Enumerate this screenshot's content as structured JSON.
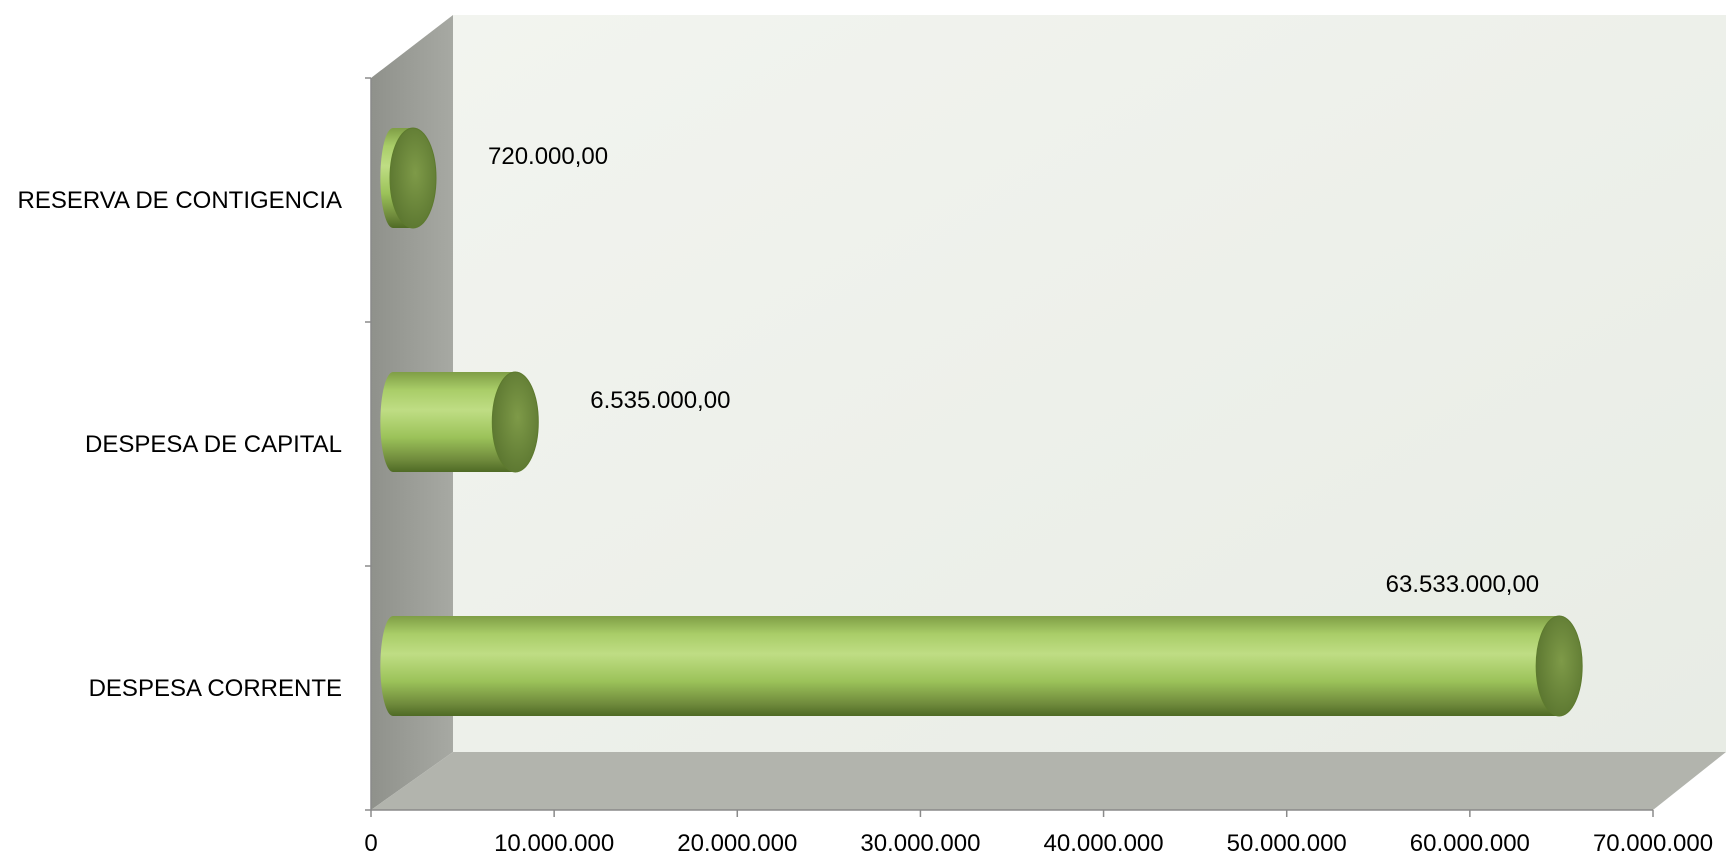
{
  "chart_data": {
    "type": "bar",
    "orientation": "horizontal",
    "style": "3d-cylinder",
    "categories": [
      "DESPESA CORRENTE",
      "DESPESA DE CAPITAL",
      "RESERVA DE CONTIGENCIA"
    ],
    "values": [
      63533000,
      6535000,
      720000
    ],
    "data_labels": [
      "63.533.000,00",
      "6.535.000,00",
      "720.000,00"
    ],
    "title": "",
    "xlabel": "",
    "ylabel": "",
    "xlim": [
      0,
      70000000
    ],
    "x_ticks": [
      0,
      10000000,
      20000000,
      30000000,
      40000000,
      50000000,
      60000000,
      70000000
    ],
    "x_tick_labels": [
      "0",
      "10.000.000",
      "20.000.000",
      "30.000.000",
      "40.000.000",
      "50.000.000",
      "60.000.000",
      "70.000.000"
    ],
    "grid": false,
    "legend": "none",
    "colors": {
      "bar": "#9cc35a",
      "bar_light": "#c4e08a",
      "bar_dark": "#5d7a2e",
      "bar_cap": "#6f8a3c",
      "back_wall": "#edf0ea",
      "side_wall": "#9d9f99",
      "floor": "#b2b4ad"
    }
  }
}
